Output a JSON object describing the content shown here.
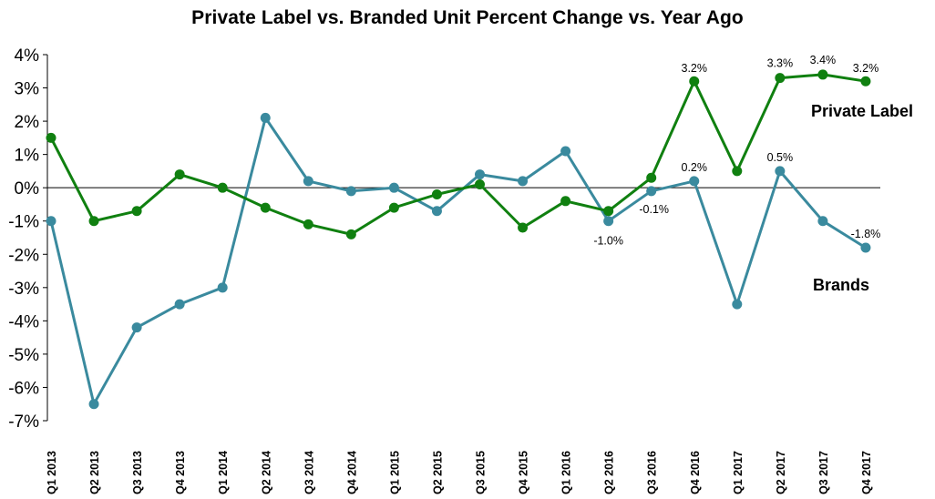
{
  "chart_data": {
    "type": "line",
    "title": "Private Label vs. Branded Unit Percent Change vs. Year Ago",
    "xlabel": "",
    "ylabel": "",
    "ylim": [
      -7,
      4
    ],
    "ytick_labels": [
      "4%",
      "3%",
      "2%",
      "1%",
      "0%",
      "-1%",
      "-2%",
      "-3%",
      "-4%",
      "-5%",
      "-6%",
      "-7%"
    ],
    "categories": [
      "Q1 2013",
      "Q2 2013",
      "Q3 2013",
      "Q4 2013",
      "Q1 2014",
      "Q2 2014",
      "Q3 2014",
      "Q4 2014",
      "Q1 2015",
      "Q2 2015",
      "Q3 2015",
      "Q4 2015",
      "Q1 2016",
      "Q2 2016",
      "Q3 2016",
      "Q4 2016",
      "Q1 2017",
      "Q2 2017",
      "Q3 2017",
      "Q4 2017"
    ],
    "grid": false,
    "zero_line": true,
    "series": [
      {
        "name": "Private Label",
        "color": "#108010",
        "values": [
          1.5,
          -1.0,
          -0.7,
          0.4,
          0.0,
          -0.6,
          -1.1,
          -1.4,
          -0.6,
          -0.2,
          0.1,
          -1.2,
          -0.4,
          -0.7,
          0.3,
          3.2,
          0.5,
          3.3,
          3.4,
          3.2
        ],
        "data_labels": [
          {
            "index": 15,
            "text": "3.2%"
          },
          {
            "index": 17,
            "text": "3.3%"
          },
          {
            "index": 18,
            "text": "3.4%"
          },
          {
            "index": 19,
            "text": "3.2%"
          }
        ]
      },
      {
        "name": "Brands",
        "color": "#3a8a9e",
        "values": [
          -1.0,
          -6.5,
          -4.2,
          -3.5,
          -3.0,
          2.1,
          0.2,
          -0.1,
          0.0,
          -0.7,
          0.4,
          0.2,
          1.1,
          -1.0,
          -0.1,
          0.2,
          -3.5,
          0.5,
          -1.0,
          -1.8
        ],
        "data_labels": [
          {
            "index": 13,
            "text": "-1.0%"
          },
          {
            "index": 14,
            "text": "-0.1%"
          },
          {
            "index": 15,
            "text": "0.2%"
          },
          {
            "index": 17,
            "text": "0.5%"
          },
          {
            "index": 19,
            "text": "-1.8%"
          }
        ]
      }
    ]
  }
}
